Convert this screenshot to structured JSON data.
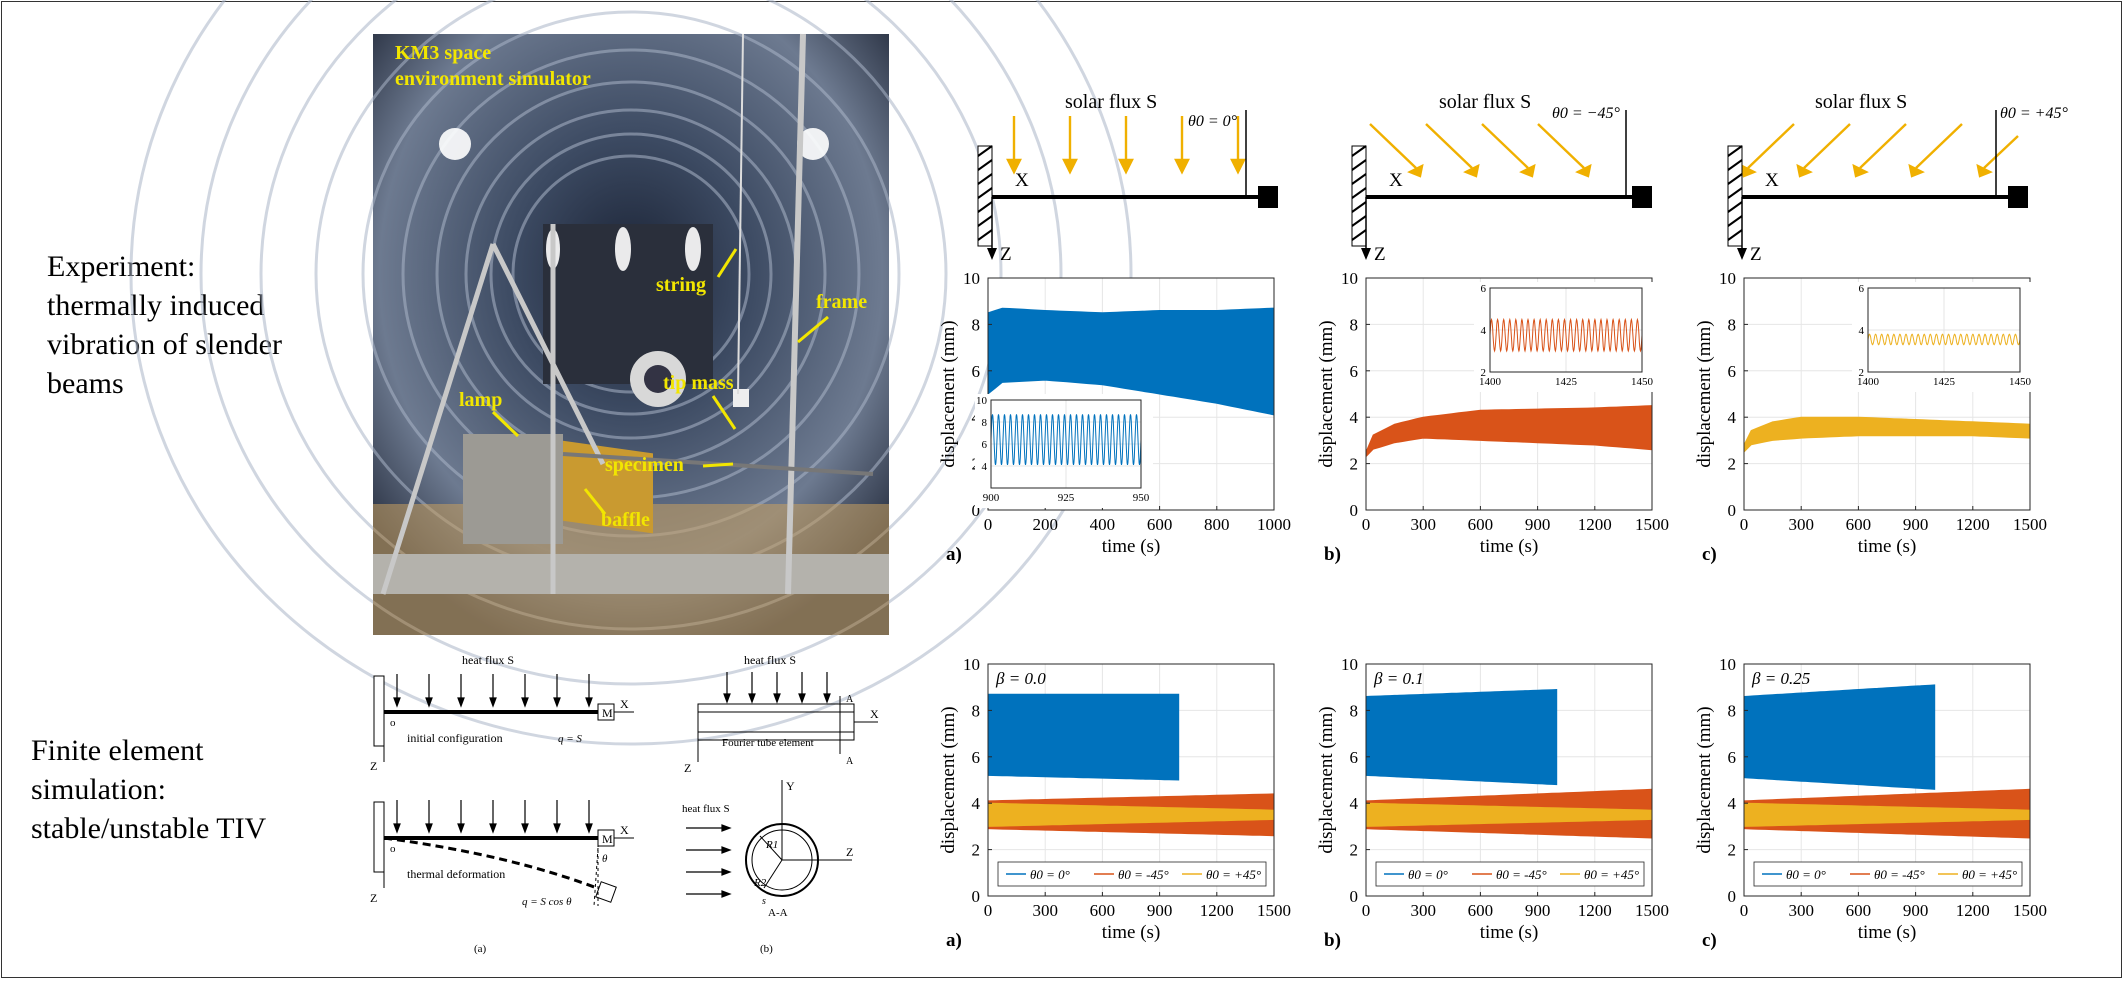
{
  "labels": {
    "experiment": [
      "Experiment:",
      "thermally induced",
      "vibration of slender",
      "beams"
    ],
    "fem": [
      "Finite element",
      "simulation:",
      "stable/unstable TIV"
    ]
  },
  "photo": {
    "title_lines": [
      "KM3 space",
      "environment simulator"
    ],
    "callouts": [
      "string",
      "frame",
      "tip mass",
      "lamp",
      "specimen",
      "baffle"
    ]
  },
  "beam_diagrams": [
    {
      "flux": "solar flux S",
      "angle": "θ0 = 0°",
      "x": "X",
      "z": "Z"
    },
    {
      "flux": "solar flux S",
      "angle": "θ0 = −45°",
      "x": "X",
      "z": "Z"
    },
    {
      "flux": "solar flux S",
      "angle": "θ0 = +45°",
      "x": "X",
      "z": "Z"
    }
  ],
  "schematic": {
    "a": {
      "flux": "heat flux S",
      "initial": "initial configuration",
      "thermal": "thermal deformation",
      "q1": "q = S",
      "q2": "q = S cos θ",
      "mass": "M",
      "origin": "o",
      "x": "X",
      "z": "Z",
      "theta": "θ",
      "caption": "(a)"
    },
    "b": {
      "flux": "heat flux S",
      "flux2": "heat flux S",
      "element": "Fourier tube element",
      "section": "A-A",
      "A": "A",
      "r1": "R1",
      "r2": "R2",
      "s": "s",
      "x": "X",
      "y": "Y",
      "z": "Z",
      "caption": "(b)"
    }
  },
  "chart_data": [
    {
      "type": "area",
      "panel": "a)",
      "title": "",
      "xlabel": "time (s)",
      "ylabel": "displacement (mm)",
      "xlim": [
        0,
        1000
      ],
      "ylim": [
        0,
        10
      ],
      "xticks": [
        0,
        200,
        400,
        600,
        800,
        1000
      ],
      "yticks": [
        0,
        2,
        4,
        6,
        8,
        10
      ],
      "color": "#0072bd",
      "series": [
        {
          "x": [
            0,
            50,
            200,
            400,
            600,
            800,
            1000
          ],
          "upper": [
            8.5,
            8.7,
            8.6,
            8.5,
            8.6,
            8.6,
            8.7
          ],
          "lower": [
            5.0,
            5.5,
            5.6,
            5.4,
            5.0,
            4.6,
            4.1
          ]
        }
      ],
      "inset": {
        "xlim": [
          900,
          950
        ],
        "ylim": [
          2,
          10
        ],
        "xticks": [
          900,
          925,
          950
        ],
        "yticks": [
          4,
          6,
          8,
          10
        ],
        "amp_low": 4.1,
        "amp_high": 8.7,
        "cycles": 25
      }
    },
    {
      "type": "area",
      "panel": "b)",
      "title": "",
      "xlabel": "time (s)",
      "ylabel": "displacement (mm)",
      "xlim": [
        0,
        1500
      ],
      "ylim": [
        0,
        10
      ],
      "xticks": [
        0,
        300,
        600,
        900,
        1200,
        1500
      ],
      "yticks": [
        0,
        2,
        4,
        6,
        8,
        10
      ],
      "color": "#d95319",
      "series": [
        {
          "x": [
            0,
            30,
            150,
            300,
            600,
            900,
            1200,
            1500
          ],
          "upper": [
            2.5,
            3.2,
            3.7,
            4.0,
            4.3,
            4.35,
            4.4,
            4.5
          ],
          "lower": [
            2.3,
            2.6,
            2.9,
            3.1,
            3.0,
            2.9,
            2.8,
            2.6
          ]
        }
      ],
      "inset": {
        "xlim": [
          1400,
          1450
        ],
        "ylim": [
          2,
          6
        ],
        "xticks": [
          1400,
          1425,
          1450
        ],
        "yticks": [
          2,
          4,
          6
        ],
        "amp_low": 3.0,
        "amp_high": 4.5,
        "cycles": 25
      }
    },
    {
      "type": "area",
      "panel": "c)",
      "title": "",
      "xlabel": "time (s)",
      "ylabel": "displacement (mm)",
      "xlim": [
        0,
        1500
      ],
      "ylim": [
        0,
        10
      ],
      "xticks": [
        0,
        300,
        600,
        900,
        1200,
        1500
      ],
      "yticks": [
        0,
        2,
        4,
        6,
        8,
        10
      ],
      "color": "#edb120",
      "series": [
        {
          "x": [
            0,
            30,
            150,
            300,
            600,
            900,
            1200,
            1500
          ],
          "upper": [
            2.8,
            3.4,
            3.8,
            4.0,
            4.0,
            3.9,
            3.8,
            3.7
          ],
          "lower": [
            2.5,
            2.8,
            3.0,
            3.1,
            3.2,
            3.2,
            3.2,
            3.1
          ]
        }
      ],
      "inset": {
        "xlim": [
          1400,
          1450
        ],
        "ylim": [
          2,
          6
        ],
        "xticks": [
          1400,
          1425,
          1450
        ],
        "yticks": [
          2,
          4,
          6
        ],
        "amp_low": 3.3,
        "amp_high": 3.8,
        "cycles": 25
      }
    },
    {
      "type": "area",
      "panel": "a)",
      "beta": "β = 0.0",
      "xlabel": "time (s)",
      "ylabel": "displacement (mm)",
      "xlim": [
        0,
        1500
      ],
      "ylim": [
        0,
        10
      ],
      "xticks": [
        0,
        300,
        600,
        900,
        1200,
        1500
      ],
      "yticks": [
        0,
        2,
        4,
        6,
        8,
        10
      ],
      "legend": [
        "θ0 = 0°",
        "θ0 = -45°",
        "θ0 = +45°"
      ],
      "series": [
        {
          "name": "θ0 = 0°",
          "color": "#0072bd",
          "x": [
            0,
            1000
          ],
          "upper": [
            8.7,
            8.7
          ],
          "lower": [
            5.2,
            5.0
          ]
        },
        {
          "name": "θ0 = -45°",
          "color": "#d95319",
          "x": [
            0,
            1500
          ],
          "upper": [
            4.1,
            4.4
          ],
          "lower": [
            2.9,
            2.6
          ]
        },
        {
          "name": "θ0 = +45°",
          "color": "#edb120",
          "x": [
            0,
            1500
          ],
          "upper": [
            4.0,
            3.7
          ],
          "lower": [
            3.0,
            3.3
          ]
        }
      ]
    },
    {
      "type": "area",
      "panel": "b)",
      "beta": "β = 0.1",
      "xlabel": "time (s)",
      "ylabel": "displacement (mm)",
      "xlim": [
        0,
        1500
      ],
      "ylim": [
        0,
        10
      ],
      "xticks": [
        0,
        300,
        600,
        900,
        1200,
        1500
      ],
      "yticks": [
        0,
        2,
        4,
        6,
        8,
        10
      ],
      "legend": [
        "θ0 = 0°",
        "θ0 = -45°",
        "θ0 = +45°"
      ],
      "series": [
        {
          "name": "θ0 = 0°",
          "color": "#0072bd",
          "x": [
            0,
            1000
          ],
          "upper": [
            8.6,
            8.9
          ],
          "lower": [
            5.2,
            4.8
          ]
        },
        {
          "name": "θ0 = -45°",
          "color": "#d95319",
          "x": [
            0,
            1500
          ],
          "upper": [
            4.1,
            4.6
          ],
          "lower": [
            2.9,
            2.5
          ]
        },
        {
          "name": "θ0 = +45°",
          "color": "#edb120",
          "x": [
            0,
            1500
          ],
          "upper": [
            4.0,
            3.7
          ],
          "lower": [
            3.0,
            3.3
          ]
        }
      ]
    },
    {
      "type": "area",
      "panel": "c)",
      "beta": "β = 0.25",
      "xlabel": "time (s)",
      "ylabel": "displacement (mm)",
      "xlim": [
        0,
        1500
      ],
      "ylim": [
        0,
        10
      ],
      "xticks": [
        0,
        300,
        600,
        900,
        1200,
        1500
      ],
      "yticks": [
        0,
        2,
        4,
        6,
        8,
        10
      ],
      "legend": [
        "θ0 = 0°",
        "θ0 = -45°",
        "θ0 = +45°"
      ],
      "series": [
        {
          "name": "θ0 = 0°",
          "color": "#0072bd",
          "x": [
            0,
            1000
          ],
          "upper": [
            8.6,
            9.1
          ],
          "lower": [
            5.1,
            4.6
          ]
        },
        {
          "name": "θ0 = -45°",
          "color": "#d95319",
          "x": [
            0,
            1500
          ],
          "upper": [
            4.1,
            4.6
          ],
          "lower": [
            2.9,
            2.5
          ]
        },
        {
          "name": "θ0 = +45°",
          "color": "#edb120",
          "x": [
            0,
            1500
          ],
          "upper": [
            4.0,
            3.7
          ],
          "lower": [
            3.0,
            3.3
          ]
        }
      ]
    }
  ]
}
